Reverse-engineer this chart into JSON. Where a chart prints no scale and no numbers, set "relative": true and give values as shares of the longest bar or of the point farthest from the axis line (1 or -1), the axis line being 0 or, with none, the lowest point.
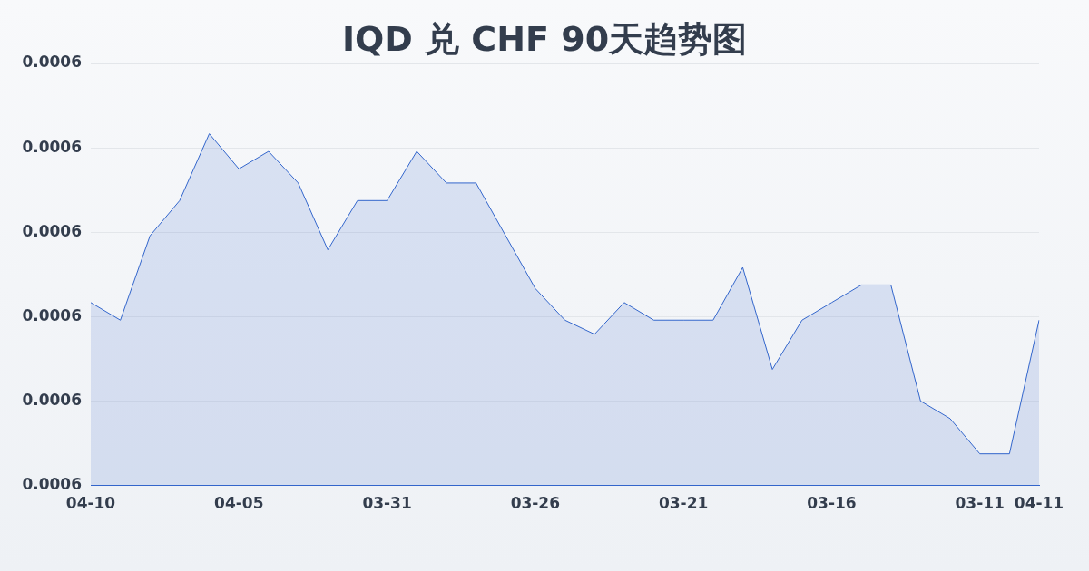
{
  "chart_data": {
    "type": "area",
    "title": "IQD 兑 CHF 90天趋势图",
    "relative": true,
    "categories": [
      "04-10",
      null,
      null,
      null,
      null,
      "04-05",
      null,
      null,
      null,
      null,
      "03-31",
      null,
      null,
      null,
      null,
      "03-26",
      null,
      null,
      null,
      null,
      "03-21",
      null,
      null,
      null,
      null,
      "03-16",
      null,
      null,
      null,
      null,
      "03-11",
      null,
      "04-11"
    ],
    "series": [
      {
        "color": "#3366cc",
        "values": [
          0.52,
          0.47,
          0.71,
          0.81,
          1,
          0.9,
          0.95,
          0.86,
          0.67,
          0.81,
          0.81,
          0.95,
          0.86,
          0.86,
          0.71,
          0.56,
          0.47,
          0.43,
          0.52,
          0.47,
          0.47,
          0.47,
          0.62,
          0.33,
          0.47,
          0.52,
          0.57,
          0.57,
          0.24,
          0.19,
          0.09,
          0.09,
          0.47
        ]
      }
    ],
    "annotations": [
      "0.0006",
      "0.0006",
      "0.0006",
      "0.0006",
      "0.0006",
      "0.0006"
    ],
    "grid": "y",
    "legend": false,
    "marker": "none"
  }
}
